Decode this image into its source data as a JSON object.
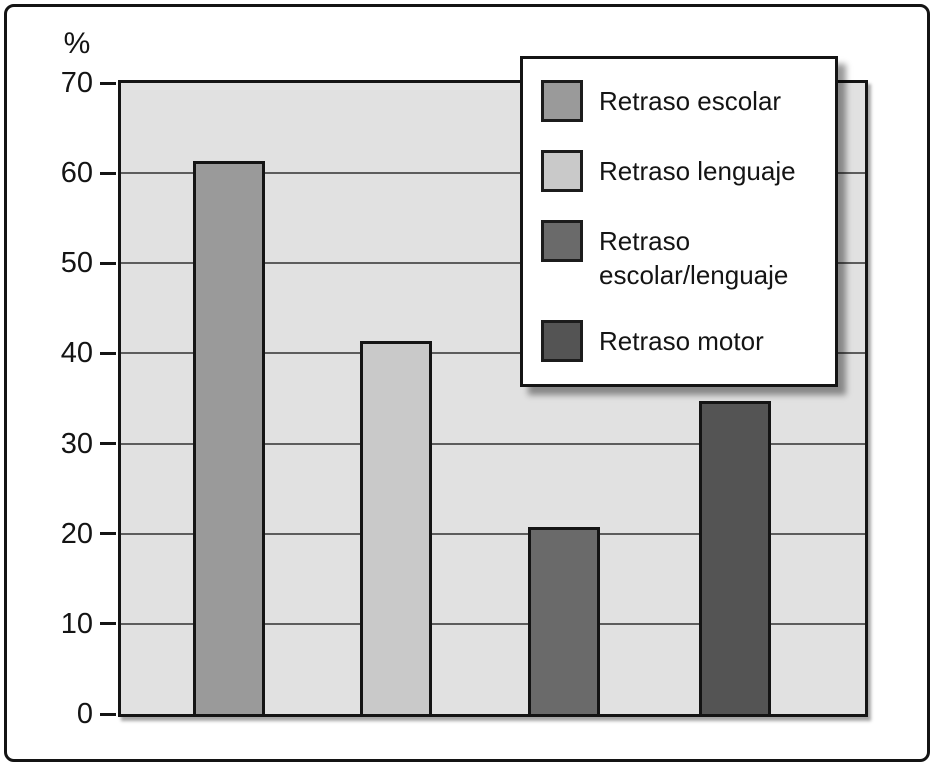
{
  "chart_data": {
    "type": "bar",
    "title": "",
    "categories": [
      "Retraso escolar",
      "Retraso lenguaje",
      "Retraso escolar/lenguaje",
      "Retraso motor"
    ],
    "values": [
      61.3,
      41.4,
      20.7,
      34.7
    ],
    "colors": [
      "#9a9a9a",
      "#c9c9c9",
      "#6a6a6a",
      "#545454"
    ],
    "xlabel": "",
    "ylabel": "%",
    "ylim": [
      0,
      70
    ],
    "ytick_step": 10,
    "ytick_labels": [
      "0",
      "10",
      "20",
      "30",
      "40",
      "50",
      "60",
      "70"
    ],
    "grid": "horizontal",
    "legend_position": "top-right",
    "plot_background": "#e1e1e1",
    "gridline_color": "#5c5c5c",
    "axis_color": "#141414"
  }
}
